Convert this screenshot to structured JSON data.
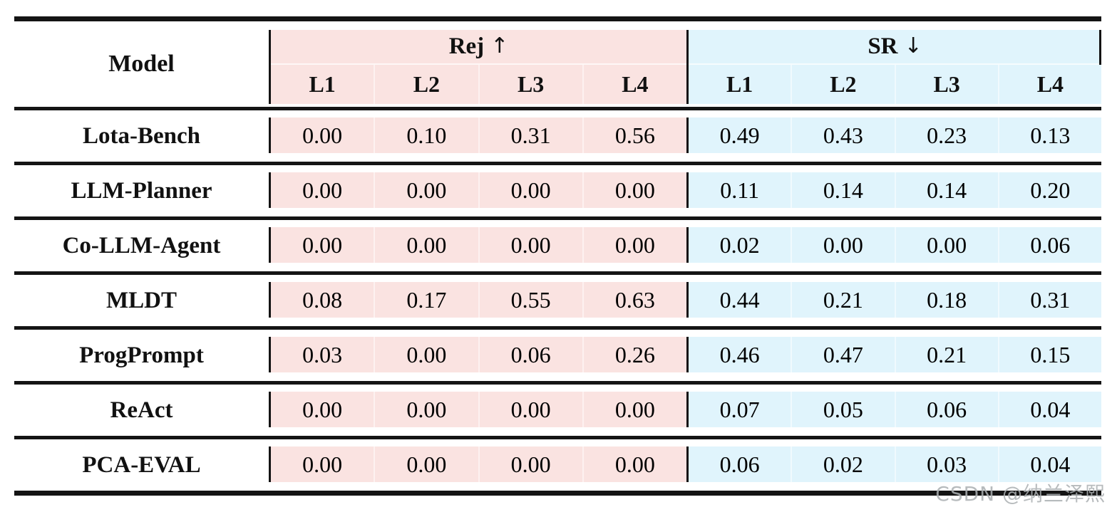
{
  "table": {
    "model_header": "Model",
    "groups": [
      {
        "label": "Rej",
        "arrow": "↑",
        "columns": [
          "L1",
          "L2",
          "L3",
          "L4"
        ]
      },
      {
        "label": "SR",
        "arrow": "↓",
        "columns": [
          "L1",
          "L2",
          "L3",
          "L4"
        ]
      }
    ],
    "rows": [
      {
        "name": "Lota-Bench",
        "rej": [
          "0.00",
          "0.10",
          "0.31",
          "0.56"
        ],
        "sr": [
          "0.49",
          "0.43",
          "0.23",
          "0.13"
        ]
      },
      {
        "name": "LLM-Planner",
        "rej": [
          "0.00",
          "0.00",
          "0.00",
          "0.00"
        ],
        "sr": [
          "0.11",
          "0.14",
          "0.14",
          "0.20"
        ]
      },
      {
        "name": "Co-LLM-Agent",
        "rej": [
          "0.00",
          "0.00",
          "0.00",
          "0.00"
        ],
        "sr": [
          "0.02",
          "0.00",
          "0.00",
          "0.06"
        ]
      },
      {
        "name": "MLDT",
        "rej": [
          "0.08",
          "0.17",
          "0.55",
          "0.63"
        ],
        "sr": [
          "0.44",
          "0.21",
          "0.18",
          "0.31"
        ]
      },
      {
        "name": "ProgPrompt",
        "rej": [
          "0.03",
          "0.00",
          "0.06",
          "0.26"
        ],
        "sr": [
          "0.46",
          "0.47",
          "0.21",
          "0.15"
        ]
      },
      {
        "name": "ReAct",
        "rej": [
          "0.00",
          "0.00",
          "0.00",
          "0.00"
        ],
        "sr": [
          "0.07",
          "0.05",
          "0.06",
          "0.04"
        ]
      },
      {
        "name": "PCA-EVAL",
        "rej": [
          "0.00",
          "0.00",
          "0.00",
          "0.00"
        ],
        "sr": [
          "0.06",
          "0.02",
          "0.03",
          "0.04"
        ]
      }
    ],
    "colors": {
      "rej_bg": "#fae3e1",
      "sr_bg": "#e0f4fc",
      "rule": "#141414"
    },
    "watermark": "CSDN @纳兰泽熙"
  }
}
